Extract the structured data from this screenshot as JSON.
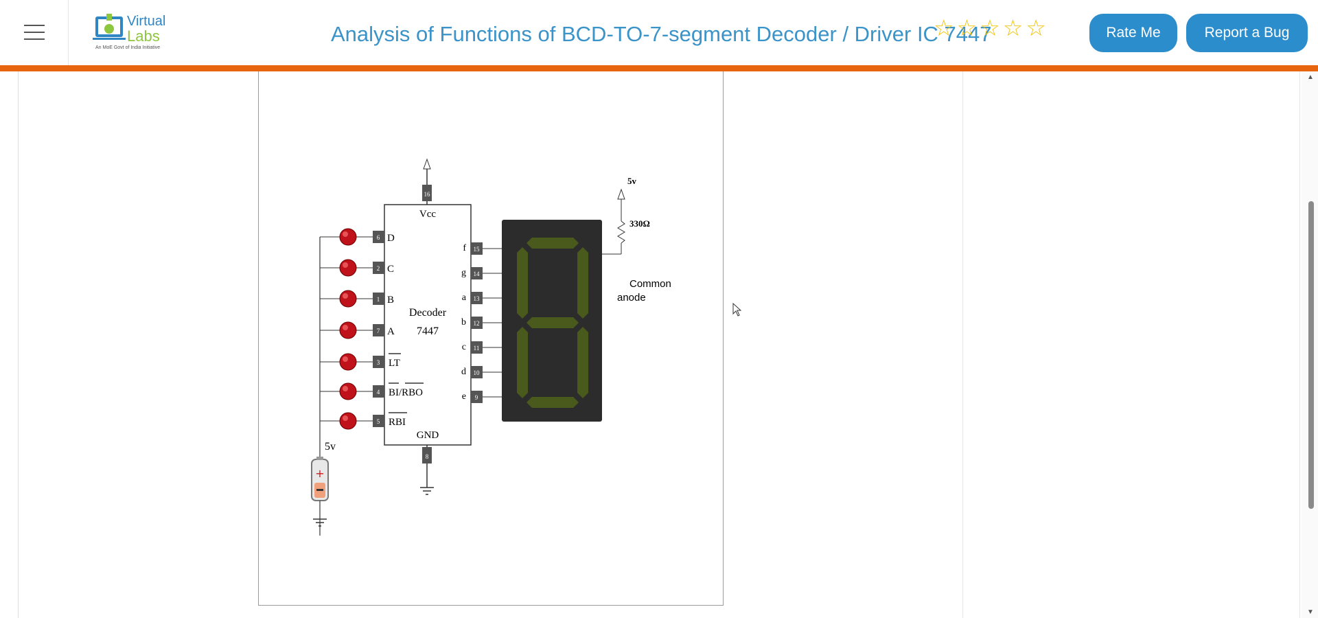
{
  "header": {
    "title": "Analysis of Functions of BCD-TO-7-segment Decoder / Driver IC 7447",
    "logo_top": "Virtual",
    "logo_bottom": "Labs",
    "logo_tag": "An MoE Govt of India Initiative",
    "rating_stars": 5,
    "rate_label": "Rate Me",
    "bug_label": "Report a Bug"
  },
  "diagram": {
    "ic_name": "Decoder",
    "ic_number": "7447",
    "vcc_label": "Vcc",
    "gnd_label": "GND",
    "supply_label": "5v",
    "resistor_label": "330Ω",
    "display_label_1": "Common",
    "display_label_2": "anode",
    "battery_label": "5v",
    "inputs": [
      {
        "name": "D",
        "pin": "6"
      },
      {
        "name": "C",
        "pin": "2"
      },
      {
        "name": "B",
        "pin": "1"
      },
      {
        "name": "A",
        "pin": "7"
      },
      {
        "name": "LT",
        "pin": "3"
      },
      {
        "name": "BI/RBO",
        "pin": "4"
      },
      {
        "name": "RBI",
        "pin": "5"
      }
    ],
    "outputs": [
      {
        "name": "f",
        "pin": "15"
      },
      {
        "name": "g",
        "pin": "14"
      },
      {
        "name": "a",
        "pin": "13"
      },
      {
        "name": "b",
        "pin": "12"
      },
      {
        "name": "c",
        "pin": "11"
      },
      {
        "name": "d",
        "pin": "10"
      },
      {
        "name": "e",
        "pin": "9"
      }
    ],
    "vcc_pin": "16",
    "gnd_pin": "8",
    "colors": {
      "led": "#c0121a",
      "segment_off": "#4a5a1c",
      "display_bg": "#2c2c2c"
    }
  }
}
